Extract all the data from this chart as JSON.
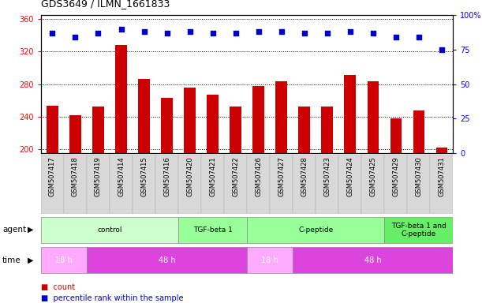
{
  "title": "GDS3649 / ILMN_1661833",
  "samples": [
    "GSM507417",
    "GSM507418",
    "GSM507419",
    "GSM507414",
    "GSM507415",
    "GSM507416",
    "GSM507420",
    "GSM507421",
    "GSM507422",
    "GSM507426",
    "GSM507427",
    "GSM507428",
    "GSM507423",
    "GSM507424",
    "GSM507425",
    "GSM507429",
    "GSM507430",
    "GSM507431"
  ],
  "counts": [
    253,
    242,
    252,
    328,
    286,
    263,
    276,
    267,
    252,
    278,
    283,
    252,
    252,
    291,
    283,
    238,
    247,
    202
  ],
  "percentile_ranks": [
    87,
    84,
    87,
    90,
    88,
    87,
    88,
    87,
    87,
    88,
    88,
    87,
    87,
    88,
    87,
    84,
    84,
    75
  ],
  "ylim_left": [
    195,
    365
  ],
  "ylim_right": [
    0,
    100
  ],
  "yticks_left": [
    200,
    240,
    280,
    320,
    360
  ],
  "yticks_right": [
    0,
    25,
    50,
    75,
    100
  ],
  "bar_color": "#cc0000",
  "dot_color": "#0000cc",
  "agent_groups": [
    {
      "label": "control",
      "start": 0,
      "end": 6,
      "color": "#ccffcc"
    },
    {
      "label": "TGF-beta 1",
      "start": 6,
      "end": 9,
      "color": "#99ff99"
    },
    {
      "label": "C-peptide",
      "start": 9,
      "end": 15,
      "color": "#99ff99"
    },
    {
      "label": "TGF-beta 1 and\nC-peptide",
      "start": 15,
      "end": 18,
      "color": "#66ee66"
    }
  ],
  "time_groups": [
    {
      "label": "18 h",
      "start": 0,
      "end": 2,
      "color": "#ffaaff"
    },
    {
      "label": "48 h",
      "start": 2,
      "end": 9,
      "color": "#dd44dd"
    },
    {
      "label": "18 h",
      "start": 9,
      "end": 11,
      "color": "#ffaaff"
    },
    {
      "label": "48 h",
      "start": 11,
      "end": 18,
      "color": "#dd44dd"
    }
  ],
  "grid_linestyle": "dotted",
  "grid_color": "#000000"
}
